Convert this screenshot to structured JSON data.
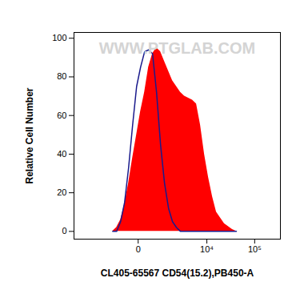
{
  "chart_data": {
    "type": "area",
    "xlabel": "CL405-65567 CD54(15.2),PB450-A",
    "ylabel": "Relative Cell Number",
    "annotations": [
      "WWW.PTGLAB.COM"
    ],
    "log": "x",
    "x": [
      -944,
      -712,
      -521,
      -362,
      -230,
      -121,
      -31,
      48,
      142,
      255,
      391,
      556,
      755,
      996,
      1287,
      1639,
      2064,
      2579,
      3200,
      3948,
      4857,
      5953,
      7280,
      8880,
      10810,
      13160,
      15980,
      23520,
      34560,
      41840
    ],
    "series": [
      {
        "type": "area",
        "color": "#ff0000",
        "values": [
          0,
          2,
          6,
          14,
          25,
          38,
          50,
          62,
          72,
          85,
          92,
          95,
          93,
          88,
          83,
          78,
          75,
          72,
          70,
          69,
          68,
          66,
          55,
          40,
          28,
          18,
          10,
          4,
          1,
          0
        ]
      },
      {
        "type": "line",
        "color": "#1a1a8c",
        "values": [
          0,
          0,
          5,
          15,
          33,
          55,
          75,
          85,
          93,
          94,
          92,
          72,
          45,
          25,
          12,
          5,
          2,
          0,
          0,
          0,
          0,
          0,
          0,
          0,
          0,
          0,
          0,
          0,
          0,
          0
        ]
      }
    ],
    "xlim": [
      -8000,
      340000
    ],
    "xticks": [
      0,
      {
        "value": 10000,
        "label": "10⁴"
      },
      {
        "value": 100000,
        "label": "10⁵"
      }
    ],
    "ylim": [
      -4,
      103
    ],
    "yticks": [
      0,
      20,
      40,
      60,
      80,
      100
    ]
  }
}
